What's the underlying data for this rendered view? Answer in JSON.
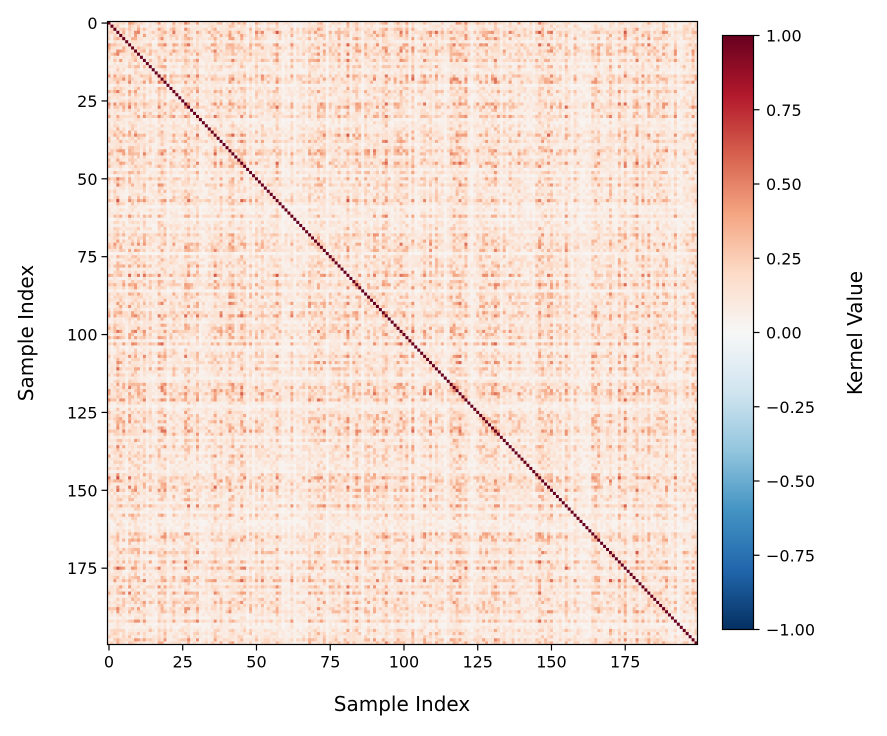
{
  "chart_data": {
    "type": "heatmap",
    "title": "",
    "xlabel": "Sample Index",
    "ylabel": "Sample Index",
    "n_rows": 200,
    "n_cols": 200,
    "x_ticks": [
      "0",
      "25",
      "50",
      "75",
      "100",
      "125",
      "150",
      "175"
    ],
    "y_ticks": [
      "0",
      "25",
      "50",
      "75",
      "100",
      "125",
      "150",
      "175"
    ],
    "diagonal_value": 1.0,
    "off_diagonal_range": [
      0.0,
      0.8
    ],
    "symmetric": true,
    "colormap": "RdBu_r",
    "colormap_stops": [
      "#053061",
      "#2166ac",
      "#4393c3",
      "#92c5de",
      "#d1e5f0",
      "#f7f7f7",
      "#fddbc7",
      "#f4a582",
      "#d6604d",
      "#b2182b",
      "#67001f"
    ],
    "vmin": -1.0,
    "vmax": 1.0,
    "colorbar": {
      "label": "Kernel Value",
      "ticks": [
        "1.00",
        "0.75",
        "0.50",
        "0.25",
        "0.00",
        "−0.25",
        "−0.50",
        "−0.75",
        "−1.00"
      ],
      "tick_values": [
        1.0,
        0.75,
        0.5,
        0.25,
        0.0,
        -0.25,
        -0.5,
        -0.75,
        -1.0
      ]
    }
  }
}
